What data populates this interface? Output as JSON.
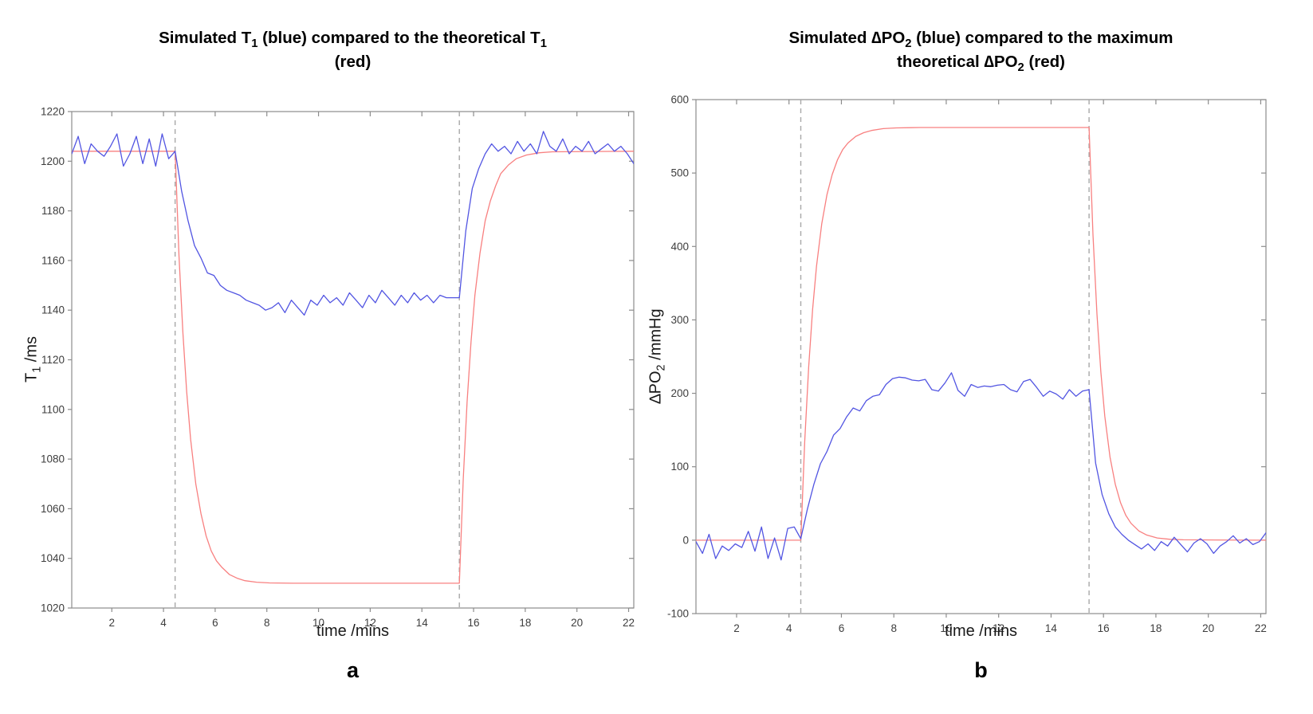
{
  "figure": {
    "background": "#ffffff"
  },
  "colors": {
    "simulated_blue": "#5255e2",
    "theoretical_red": "#f88080",
    "event_line_gray": "#a8a8a8",
    "frame_gray": "#8c8c8c",
    "tick_label": "#3d3d3d",
    "title_black": "#000000"
  },
  "chart_data": [
    {
      "type": "line",
      "panel": "a",
      "caption": "a",
      "title": "Simulated T1 (blue) compared to the theoretical T1 (red)",
      "title_lines": [
        [
          {
            "t": "Simulated T"
          },
          {
            "t": "1",
            "sub": true
          },
          {
            "t": " (blue) compared to the theoretical T"
          },
          {
            "t": "1",
            "sub": true
          }
        ],
        [
          {
            "t": "(red)"
          }
        ]
      ],
      "xlabel": "time /mins",
      "ylabel": "T1 /ms",
      "ylabel_parts": [
        {
          "t": "T"
        },
        {
          "t": "1",
          "sub": true
        },
        {
          "t": " /ms"
        }
      ],
      "xlim": [
        0.45,
        22.2
      ],
      "ylim": [
        1020,
        1220
      ],
      "xticks": [
        2,
        4,
        6,
        8,
        10,
        12,
        14,
        16,
        18,
        20,
        22
      ],
      "yticks": [
        1020,
        1040,
        1060,
        1080,
        1100,
        1120,
        1140,
        1160,
        1180,
        1200,
        1220
      ],
      "grid": false,
      "legend": "none",
      "annotations": {
        "event_lines_x": [
          4.45,
          15.45
        ],
        "style": "dashed-vertical"
      },
      "series": [
        {
          "name": "theoretical-red",
          "label": "theoretical T1 (red)",
          "color": "#f88080",
          "points": [
            [
              0.45,
              1204
            ],
            [
              4.45,
              1204
            ],
            [
              4.6,
              1162
            ],
            [
              4.75,
              1131
            ],
            [
              4.9,
              1107
            ],
            [
              5.05,
              1088
            ],
            [
              5.25,
              1070
            ],
            [
              5.45,
              1058
            ],
            [
              5.65,
              1049
            ],
            [
              5.85,
              1043
            ],
            [
              6.05,
              1039
            ],
            [
              6.25,
              1036.5
            ],
            [
              6.55,
              1033.5
            ],
            [
              6.85,
              1032
            ],
            [
              7.15,
              1031
            ],
            [
              7.6,
              1030.4
            ],
            [
              8.1,
              1030.1
            ],
            [
              9,
              1030
            ],
            [
              15.45,
              1030
            ],
            [
              15.6,
              1072
            ],
            [
              15.75,
              1103
            ],
            [
              15.9,
              1127
            ],
            [
              16.05,
              1146
            ],
            [
              16.25,
              1163
            ],
            [
              16.45,
              1176
            ],
            [
              16.65,
              1184
            ],
            [
              16.85,
              1190
            ],
            [
              17.05,
              1195
            ],
            [
              17.35,
              1198.5
            ],
            [
              17.65,
              1201
            ],
            [
              18.05,
              1202.5
            ],
            [
              18.55,
              1203.4
            ],
            [
              19.05,
              1203.8
            ],
            [
              22.2,
              1204
            ]
          ]
        },
        {
          "name": "simulated-blue",
          "label": "simulated T1 (blue)",
          "color": "#5255e2",
          "x_start": 0.45,
          "x_step": 0.25,
          "y": [
            1203,
            1210,
            1199,
            1207,
            1204,
            1202,
            1206,
            1211,
            1198,
            1203,
            1210,
            1199,
            1209,
            1198,
            1211,
            1201,
            1204,
            1188,
            1176,
            1166,
            1161,
            1155,
            1154,
            1150,
            1148,
            1147,
            1146,
            1144,
            1143,
            1142,
            1140,
            1141,
            1143,
            1139,
            1144,
            1141,
            1138,
            1144,
            1142,
            1146,
            1143,
            1145,
            1142,
            1147,
            1144,
            1141,
            1146,
            1143,
            1148,
            1145,
            1142,
            1146,
            1143,
            1147,
            1144,
            1146,
            1143,
            1146,
            1145,
            1145,
            1145,
            1172,
            1189,
            1197,
            1203,
            1207,
            1204,
            1206,
            1203,
            1208,
            1204,
            1207,
            1203,
            1212,
            1206,
            1204,
            1209,
            1203,
            1206,
            1204,
            1208,
            1203,
            1205,
            1207,
            1204,
            1206,
            1203,
            1199
          ]
        }
      ]
    },
    {
      "type": "line",
      "panel": "b",
      "caption": "b",
      "title": "Simulated ∆PO2 (blue) compared to the maximum theoretical ∆PO2 (red)",
      "title_lines": [
        [
          {
            "t": "Simulated ∆PO"
          },
          {
            "t": "2",
            "sub": true
          },
          {
            "t": " (blue) compared to the maximum"
          }
        ],
        [
          {
            "t": "theoretical ∆PO"
          },
          {
            "t": "2",
            "sub": true
          },
          {
            "t": " (red)"
          }
        ]
      ],
      "xlabel": "time /mins",
      "ylabel": "∆PO2 /mmHg",
      "ylabel_parts": [
        {
          "t": "∆PO"
        },
        {
          "t": "2",
          "sub": true
        },
        {
          "t": " /mmHg"
        }
      ],
      "xlim": [
        0.45,
        22.2
      ],
      "ylim": [
        -100,
        600
      ],
      "xticks": [
        2,
        4,
        6,
        8,
        10,
        12,
        14,
        16,
        18,
        20,
        22
      ],
      "yticks": [
        -100,
        0,
        100,
        200,
        300,
        400,
        500,
        600
      ],
      "grid": false,
      "legend": "none",
      "annotations": {
        "event_lines_x": [
          4.45,
          15.45
        ],
        "style": "dashed-vertical"
      },
      "series": [
        {
          "name": "theoretical-red",
          "label": "maximum theoretical dPO2 (red)",
          "color": "#f88080",
          "points": [
            [
              0.45,
              0
            ],
            [
              4.45,
              0
            ],
            [
              4.6,
              134
            ],
            [
              4.75,
              236
            ],
            [
              4.9,
              314
            ],
            [
              5.05,
              373
            ],
            [
              5.25,
              431
            ],
            [
              5.45,
              471
            ],
            [
              5.65,
              498
            ],
            [
              5.85,
              518
            ],
            [
              6.05,
              532
            ],
            [
              6.25,
              541
            ],
            [
              6.55,
              550
            ],
            [
              6.85,
              555
            ],
            [
              7.15,
              558
            ],
            [
              7.6,
              560.5
            ],
            [
              8.1,
              561.5
            ],
            [
              9,
              562
            ],
            [
              15.45,
              562
            ],
            [
              15.6,
              416
            ],
            [
              15.75,
              308
            ],
            [
              15.9,
              229
            ],
            [
              16.05,
              169
            ],
            [
              16.25,
              113
            ],
            [
              16.45,
              76
            ],
            [
              16.65,
              51
            ],
            [
              16.85,
              34
            ],
            [
              17.05,
              23
            ],
            [
              17.35,
              12.5
            ],
            [
              17.65,
              7
            ],
            [
              18.05,
              3
            ],
            [
              18.55,
              1.2
            ],
            [
              19.05,
              0.5
            ],
            [
              22.2,
              0
            ]
          ]
        },
        {
          "name": "simulated-blue",
          "label": "simulated dPO2 (blue)",
          "color": "#5255e2",
          "x_start": 0.45,
          "x_step": 0.25,
          "y": [
            -2,
            -18,
            8,
            -25,
            -8,
            -14,
            -5,
            -10,
            12,
            -15,
            18,
            -25,
            3,
            -27,
            16,
            18,
            2,
            42,
            76,
            104,
            121,
            143,
            152,
            168,
            180,
            176,
            190,
            196,
            198,
            212,
            220,
            222,
            221,
            218,
            217,
            219,
            205,
            203,
            214,
            228,
            204,
            196,
            212,
            208,
            210,
            209,
            211,
            212,
            205,
            202,
            216,
            219,
            208,
            196,
            203,
            199,
            192,
            205,
            196,
            203,
            205,
            105,
            62,
            36,
            18,
            8,
            0,
            -6,
            -12,
            -5,
            -14,
            -2,
            -8,
            4,
            -6,
            -16,
            -4,
            2,
            -5,
            -18,
            -8,
            -2,
            6,
            -4,
            2,
            -6,
            -2,
            10
          ]
        }
      ]
    }
  ]
}
